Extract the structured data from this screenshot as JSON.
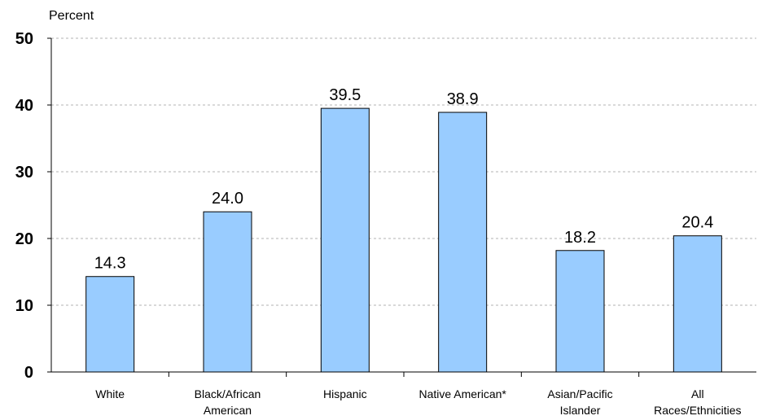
{
  "chart_data": {
    "type": "bar",
    "ylabel": "Percent",
    "ylim": [
      0,
      50
    ],
    "yticks": [
      0,
      10,
      20,
      30,
      40,
      50
    ],
    "grid": true,
    "bar_color": "#99ccff",
    "categories": [
      [
        "White"
      ],
      [
        "Black/African",
        "American"
      ],
      [
        "Hispanic"
      ],
      [
        "Native American*"
      ],
      [
        "Asian/Pacific",
        "Islander"
      ],
      [
        "All",
        "Races/Ethnicities"
      ]
    ],
    "values": [
      14.3,
      24.0,
      39.5,
      38.9,
      18.2,
      20.4
    ],
    "value_labels": [
      "14.3",
      "24.0",
      "39.5",
      "38.9",
      "18.2",
      "20.4"
    ]
  }
}
